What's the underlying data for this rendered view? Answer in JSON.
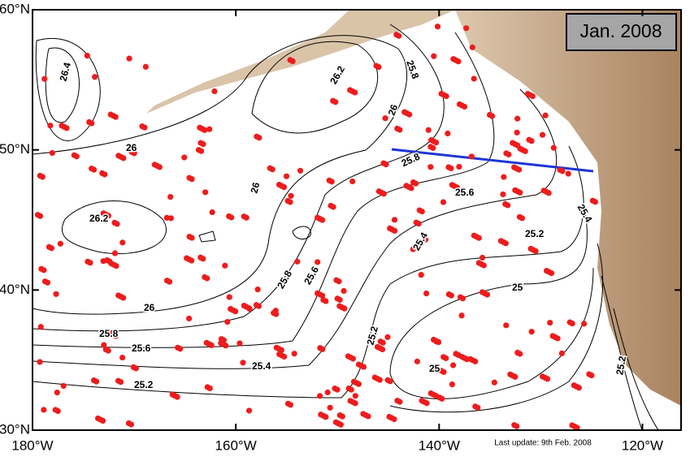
{
  "map": {
    "title": "Jan. 2008",
    "update_note": "Last update: 9th Feb. 2008",
    "lat_range": [
      30,
      60
    ],
    "lon_range": [
      -180,
      -116.2
    ],
    "lat_ticks": [
      {
        "value": 60,
        "label": "60°N"
      },
      {
        "value": 50,
        "label": "50°N"
      },
      {
        "value": 40,
        "label": "40°N"
      },
      {
        "value": 30,
        "label": "30°N"
      }
    ],
    "lon_ticks": [
      {
        "value": -180,
        "label": "180°W"
      },
      {
        "value": -160,
        "label": "160°W"
      },
      {
        "value": -140,
        "label": "140°W"
      },
      {
        "value": -120,
        "label": "120°W"
      }
    ],
    "contour_labels": [
      "26.4",
      "26.2",
      "25.8",
      "26",
      "26",
      "25.8",
      "26",
      "25.6",
      "25.4",
      "26.2",
      "25.2",
      "25.4",
      "25.8",
      "25.6",
      "26",
      "25",
      "25.8",
      "25.6",
      "25.4",
      "25.2",
      "25",
      "25.2",
      "25.2"
    ]
  }
}
